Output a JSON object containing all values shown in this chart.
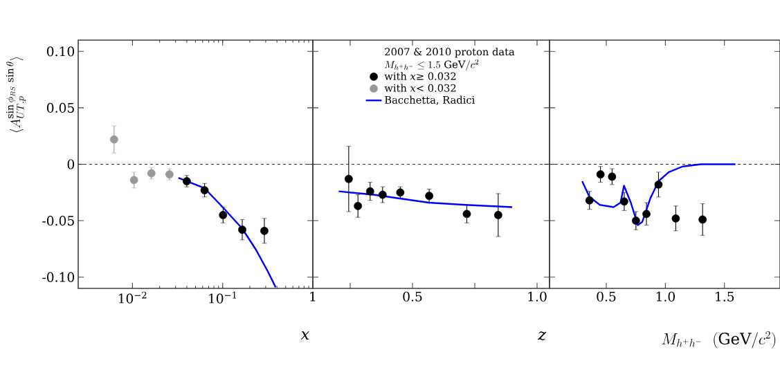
{
  "chart_data": [
    {
      "type": "scatter",
      "log": "x",
      "marker": "circle",
      "ylabel": "\\langle A_{UT,p}^{\\sin\\phi_{RS}\\,\\sin\\theta}\\rangle",
      "xlabel": "*x*",
      "xlim": [
        0.0025,
        1
      ],
      "xticks": [
        {
          "value": 0.01,
          "label": "10$^{−2}$"
        },
        {
          "value": 0.1,
          "label": "10$^{−1}$"
        },
        1
      ],
      "ylim": [
        -0.11,
        0.11
      ],
      "yticks": [
        {
          "value": -0.1,
          "label": "-0.10"
        },
        -0.05,
        0,
        0.05,
        {
          "value": 0.1,
          "label": "0.10"
        }
      ],
      "ref_lines": [
        {
          "axis": "y",
          "value": 0,
          "line_style": "dashed",
          "color": "#000000"
        }
      ],
      "legend": "right",
      "legend_title": "2007 & 2010 proton data",
      "annotations": [
        "M_{h^+h^-}\\leq 1.5\\ \\mathrm{GeV}/c^2"
      ],
      "series": [
        {
          "type": "scatter",
          "name": "with *x*≥ 0.032",
          "color": "#000000",
          "x": [
            0.04,
            0.063,
            0.101,
            0.165,
            0.29
          ],
          "values": [
            -0.015,
            -0.023,
            -0.045,
            -0.058,
            -0.059
          ],
          "errors": [
            0.005,
            0.006,
            0.007,
            0.009,
            0.011
          ]
        },
        {
          "type": "scatter",
          "name": "with *x*< 0.032",
          "color": "#999999",
          "x": [
            0.00625,
            0.0104,
            0.0162,
            0.0257
          ],
          "values": [
            0.022,
            -0.014,
            -0.008,
            -0.009
          ],
          "errors": [
            0.012,
            0.007,
            0.005,
            0.005
          ]
        },
        {
          "type": "line",
          "marker": "none",
          "name": "Bacchetta, Radici",
          "color": "#0000ff",
          "x": [
            0.0323,
            0.0625,
            0.1,
            0.165,
            0.235,
            0.317,
            0.387
          ],
          "values": [
            -0.012,
            -0.021,
            -0.038,
            -0.057,
            -0.076,
            -0.095,
            -0.109
          ]
        }
      ]
    },
    {
      "type": "scatter",
      "marker": "circle",
      "xlabel": "*z*",
      "tick_labels": "x",
      "xlim": [
        0.1,
        1.05
      ],
      "xticks": [
        {
          "value": 0.25,
          "label": null
        },
        0.5,
        {
          "value": 0.75,
          "label": null
        },
        {
          "value": 1.0,
          "label": "1.0"
        }
      ],
      "ylim": [
        -0.11,
        0.11
      ],
      "yticks": [
        -0.1,
        -0.05,
        0,
        0.05,
        0.1
      ],
      "ref_lines": [
        {
          "axis": "y",
          "value": 0,
          "line_style": "dashed",
          "color": "#000000"
        }
      ],
      "series": [
        {
          "color": "#000000",
          "x": [
            0.244,
            0.281,
            0.33,
            0.38,
            0.451,
            0.567,
            0.718,
            0.844
          ],
          "values": [
            -0.013,
            -0.037,
            -0.024,
            -0.027,
            -0.025,
            -0.028,
            -0.044,
            -0.045
          ],
          "errors": [
            0.029,
            0.01,
            0.008,
            0.007,
            0.005,
            0.006,
            0.008,
            0.019
          ]
        },
        {
          "type": "line",
          "marker": "none",
          "color": "#0000ff",
          "x": [
            0.204,
            0.343,
            0.565,
            0.713,
            0.9
          ],
          "values": [
            -0.024,
            -0.027,
            -0.034,
            -0.036,
            -0.038
          ]
        }
      ]
    },
    {
      "type": "scatter",
      "marker": "circle",
      "xlabel": "M_{h^+h^-}\\ \\ (\\mathrm{GeV}/c^2)",
      "tick_labels": "x",
      "xlim": [
        0.02,
        1.97
      ],
      "xticks": [
        0.5,
        {
          "value": 1.0,
          "label": "1.0"
        },
        1.5
      ],
      "ylim": [
        -0.11,
        0.11
      ],
      "yticks": [
        -0.1,
        -0.05,
        0,
        0.05,
        0.1
      ],
      "ref_lines": [
        {
          "axis": "y",
          "value": 0,
          "line_style": "dashed",
          "color": "#000000"
        }
      ],
      "series": [
        {
          "color": "#000000",
          "x": [
            0.358,
            0.451,
            0.549,
            0.652,
            0.751,
            0.84,
            0.942,
            1.088,
            1.315
          ],
          "values": [
            -0.032,
            -0.009,
            -0.011,
            -0.033,
            -0.05,
            -0.044,
            -0.018,
            -0.048,
            -0.049
          ],
          "errors": [
            0.008,
            0.007,
            0.007,
            0.008,
            0.008,
            0.01,
            0.011,
            0.011,
            0.014
          ]
        },
        {
          "type": "line",
          "marker": "none",
          "color": "#0000ff",
          "x": [
            0.296,
            0.358,
            0.446,
            0.562,
            0.621,
            0.65,
            0.708,
            0.767,
            0.805,
            0.874,
            0.942,
            1.029,
            1.146,
            1.302,
            1.593
          ],
          "values": [
            -0.015,
            -0.029,
            -0.036,
            -0.038,
            -0.034,
            -0.019,
            -0.034,
            -0.054,
            -0.051,
            -0.03,
            -0.015,
            -0.007,
            -0.002,
            0.0,
            0
          ]
        }
      ]
    }
  ]
}
